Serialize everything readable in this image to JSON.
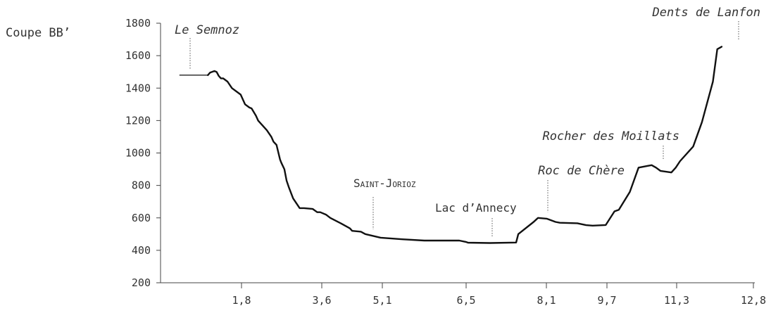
{
  "chart_data": {
    "type": "line",
    "title": "Coupe BB’",
    "xlabel": "",
    "ylabel": "",
    "ylim": [
      200,
      1800
    ],
    "xlim": [
      0.4,
      12.8
    ],
    "y_ticks": [
      200,
      400,
      600,
      800,
      1000,
      1200,
      1400,
      1600,
      1800
    ],
    "x_tick_labels": [
      "1,8",
      "3,6",
      "5,1",
      "6,5",
      "8,1",
      "9,7",
      "11,3",
      "12,8"
    ],
    "series": [
      {
        "x": [
          0.4,
          1.05,
          1.1,
          1.2,
          1.25,
          1.3,
          1.35,
          1.4,
          1.5,
          1.6,
          1.8,
          1.9,
          2.0,
          2.05,
          2.15,
          2.2,
          2.4,
          2.5,
          2.55,
          2.62,
          2.7,
          2.73,
          2.8,
          2.85,
          2.9,
          3.0,
          3.05,
          3.15,
          3.25,
          3.45,
          3.55,
          3.62,
          3.75,
          3.85,
          4.1,
          4.3,
          4.35,
          4.55,
          4.65,
          5.0,
          5.5,
          6.0,
          6.8,
          6.95,
          7.0,
          7.5,
          8.1,
          8.15,
          8.5,
          8.6,
          8.8,
          9.0,
          9.1,
          9.5,
          9.7,
          9.85,
          10.15,
          10.35,
          10.45,
          10.7,
          10.9,
          11.1,
          11.2,
          11.3,
          11.4,
          11.65,
          11.75,
          11.85,
          12.15,
          12.35,
          12.6,
          12.7,
          12.8
        ],
        "y": [
          1480,
          1480,
          1495,
          1505,
          1500,
          1475,
          1460,
          1460,
          1440,
          1400,
          1360,
          1300,
          1280,
          1275,
          1230,
          1200,
          1140,
          1100,
          1070,
          1050,
          960,
          940,
          900,
          830,
          790,
          720,
          700,
          660,
          660,
          655,
          635,
          635,
          620,
          600,
          565,
          535,
          520,
          515,
          500,
          478,
          468,
          460,
          460,
          452,
          447,
          445,
          448,
          500,
          575,
          600,
          595,
          575,
          570,
          567,
          555,
          552,
          556,
          640,
          650,
          760,
          910,
          920,
          925,
          910,
          890,
          880,
          910,
          950,
          1040,
          1190,
          1440,
          1640,
          1655
        ]
      }
    ],
    "annotations": [
      {
        "label": "Le Semnoz",
        "x": 1.1,
        "y": 1480
      },
      {
        "label": "Dents de Lanfon",
        "x": 12.65,
        "y": 1660
      },
      {
        "label": "Rocher des Moillats",
        "x": 11.1,
        "y": 920
      },
      {
        "label": "Roc de Chère",
        "x": 8.4,
        "y": 600
      },
      {
        "label": "Saint-Jorioz",
        "x": 4.8,
        "y": 495
      },
      {
        "label": "Lac d’Annecy",
        "x": 7.1,
        "y": 445
      }
    ],
    "grid": false
  }
}
